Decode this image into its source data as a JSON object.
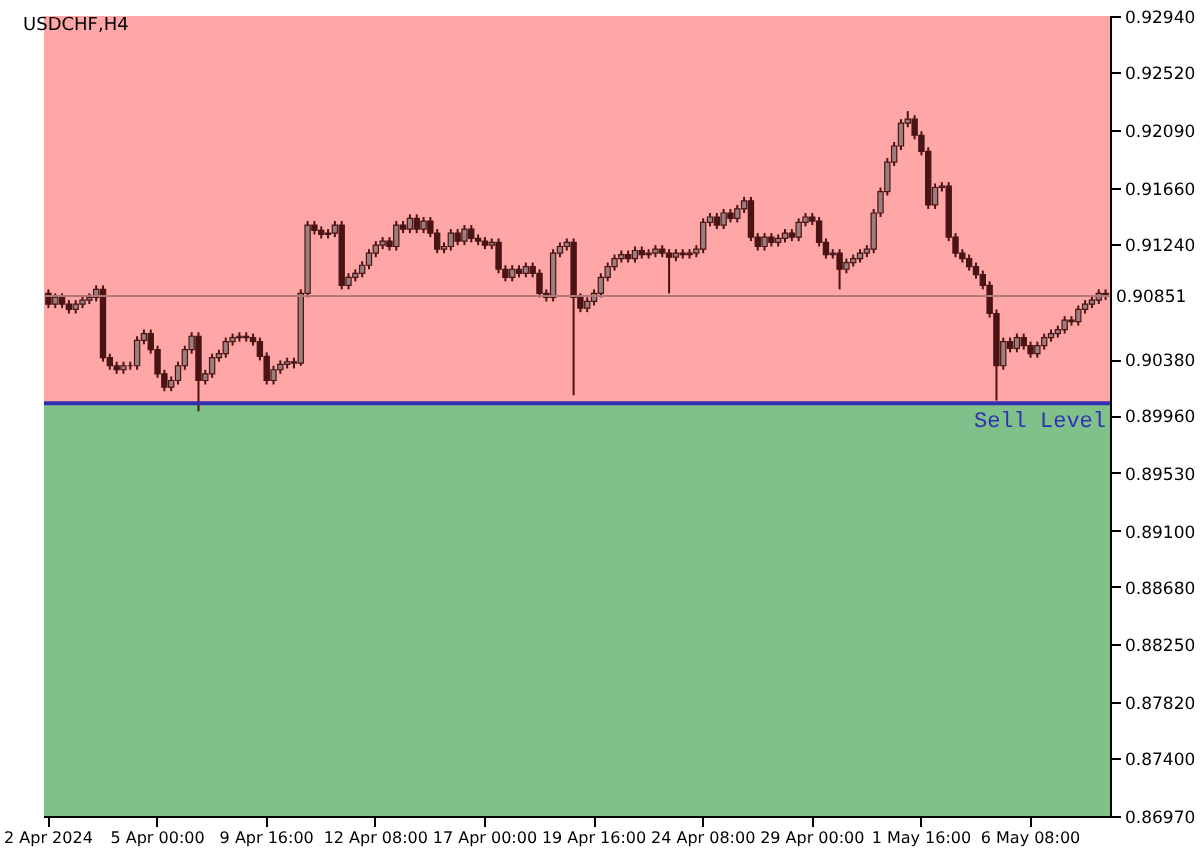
{
  "chart_data": {
    "type": "candlestick",
    "title": "USDCHF,H4",
    "categories": [
      "2 Apr 2024",
      null,
      null,
      null,
      null,
      null,
      null,
      null,
      null,
      null,
      null,
      null,
      null,
      null,
      null,
      null,
      "5 Apr 00:00",
      null,
      null,
      null,
      null,
      null,
      null,
      null,
      null,
      null,
      null,
      null,
      null,
      null,
      null,
      null,
      "9 Apr 16:00",
      null,
      null,
      null,
      null,
      null,
      null,
      null,
      null,
      null,
      null,
      null,
      null,
      null,
      null,
      null,
      "12 Apr 08:00",
      null,
      null,
      null,
      null,
      null,
      null,
      null,
      null,
      null,
      null,
      null,
      null,
      null,
      null,
      null,
      "17 Apr 00:00",
      null,
      null,
      null,
      null,
      null,
      null,
      null,
      null,
      null,
      null,
      null,
      null,
      null,
      null,
      null,
      "19 Apr 16:00",
      null,
      null,
      null,
      null,
      null,
      null,
      null,
      null,
      null,
      null,
      null,
      null,
      null,
      null,
      null,
      "24 Apr 08:00",
      null,
      null,
      null,
      null,
      null,
      null,
      null,
      null,
      null,
      null,
      null,
      null,
      null,
      null,
      null,
      "29 Apr 00:00",
      null,
      null,
      null,
      null,
      null,
      null,
      null,
      null,
      null,
      null,
      null,
      null,
      null,
      null,
      null,
      "1 May 16:00",
      null,
      null,
      null,
      null,
      null,
      null,
      null,
      null,
      null,
      null,
      null,
      null,
      null,
      null,
      null,
      "6 May 08:00",
      null,
      null,
      null,
      null,
      null,
      null,
      null,
      null,
      null,
      null,
      null
    ],
    "color": "#4a1414",
    "ohlc": [
      [
        0.9087,
        0.909,
        0.9076,
        0.9079
      ],
      [
        0.9079,
        0.9087,
        0.9076,
        0.9084
      ],
      [
        0.9084,
        0.9087,
        0.9076,
        0.9079
      ],
      [
        0.9079,
        0.9082,
        0.9072,
        0.9075
      ],
      [
        0.9075,
        0.9082,
        0.9072,
        0.9079
      ],
      [
        0.9079,
        0.9085,
        0.9076,
        0.9082
      ],
      [
        0.9082,
        0.9087,
        0.9079,
        0.9084
      ],
      [
        0.9084,
        0.9093,
        0.9081,
        0.909
      ],
      [
        0.909,
        0.9093,
        0.9036,
        0.9039
      ],
      [
        0.9039,
        0.9042,
        0.903,
        0.9033
      ],
      [
        0.9033,
        0.9036,
        0.9027,
        0.903
      ],
      [
        0.903,
        0.9036,
        0.9027,
        0.9033
      ],
      [
        0.9033,
        0.9036,
        0.903,
        0.9033
      ],
      [
        0.9033,
        0.9055,
        0.903,
        0.9052
      ],
      [
        0.9052,
        0.906,
        0.9049,
        0.9057
      ],
      [
        0.9057,
        0.906,
        0.9042,
        0.9045
      ],
      [
        0.9045,
        0.9048,
        0.9024,
        0.9027
      ],
      [
        0.9027,
        0.903,
        0.9014,
        0.9017
      ],
      [
        0.9017,
        0.9025,
        0.9014,
        0.9022
      ],
      [
        0.9022,
        0.9036,
        0.9019,
        0.9033
      ],
      [
        0.9033,
        0.9048,
        0.903,
        0.9045
      ],
      [
        0.9045,
        0.9058,
        0.9042,
        0.9055
      ],
      [
        0.9055,
        0.9058,
        0.8999,
        0.9022
      ],
      [
        0.9022,
        0.903,
        0.9019,
        0.9027
      ],
      [
        0.9027,
        0.9042,
        0.9024,
        0.9039
      ],
      [
        0.9039,
        0.9045,
        0.9036,
        0.9042
      ],
      [
        0.9042,
        0.9054,
        0.9039,
        0.9051
      ],
      [
        0.9051,
        0.9057,
        0.9048,
        0.9054
      ],
      [
        0.9054,
        0.9058,
        0.9051,
        0.9055
      ],
      [
        0.9055,
        0.9058,
        0.9051,
        0.9054
      ],
      [
        0.9054,
        0.9057,
        0.9048,
        0.9051
      ],
      [
        0.9051,
        0.9054,
        0.9037,
        0.904
      ],
      [
        0.904,
        0.9043,
        0.9019,
        0.9022
      ],
      [
        0.9022,
        0.9033,
        0.9019,
        0.903
      ],
      [
        0.903,
        0.9037,
        0.9027,
        0.9034
      ],
      [
        0.9034,
        0.9039,
        0.9031,
        0.9036
      ],
      [
        0.9036,
        0.9039,
        0.9031,
        0.9035
      ],
      [
        0.9035,
        0.909,
        0.9033,
        0.9087
      ],
      [
        0.9087,
        0.9141,
        0.9084,
        0.9138
      ],
      [
        0.9138,
        0.9141,
        0.9131,
        0.9134
      ],
      [
        0.9134,
        0.9137,
        0.9128,
        0.9131
      ],
      [
        0.9131,
        0.9135,
        0.9128,
        0.9132
      ],
      [
        0.9132,
        0.9141,
        0.9129,
        0.9138
      ],
      [
        0.9138,
        0.9141,
        0.909,
        0.9093
      ],
      [
        0.9093,
        0.9102,
        0.909,
        0.9099
      ],
      [
        0.9099,
        0.9105,
        0.9096,
        0.9102
      ],
      [
        0.9102,
        0.9111,
        0.9099,
        0.9108
      ],
      [
        0.9108,
        0.912,
        0.9105,
        0.9117
      ],
      [
        0.9117,
        0.9126,
        0.9114,
        0.9123
      ],
      [
        0.9123,
        0.9129,
        0.912,
        0.9126
      ],
      [
        0.9126,
        0.9129,
        0.9119,
        0.9122
      ],
      [
        0.9122,
        0.9141,
        0.9119,
        0.9138
      ],
      [
        0.9138,
        0.9141,
        0.9132,
        0.9135
      ],
      [
        0.9135,
        0.9146,
        0.9132,
        0.9143
      ],
      [
        0.9143,
        0.9146,
        0.9132,
        0.9135
      ],
      [
        0.9135,
        0.9144,
        0.9132,
        0.9141
      ],
      [
        0.9141,
        0.9144,
        0.9129,
        0.9132
      ],
      [
        0.9132,
        0.9135,
        0.9117,
        0.912
      ],
      [
        0.912,
        0.9125,
        0.9117,
        0.9122
      ],
      [
        0.9122,
        0.9135,
        0.9119,
        0.9132
      ],
      [
        0.9132,
        0.9135,
        0.9123,
        0.9126
      ],
      [
        0.9126,
        0.9138,
        0.9123,
        0.9135
      ],
      [
        0.9135,
        0.9138,
        0.9125,
        0.9128
      ],
      [
        0.9128,
        0.9131,
        0.9123,
        0.9126
      ],
      [
        0.9126,
        0.9129,
        0.912,
        0.9123
      ],
      [
        0.9123,
        0.9128,
        0.912,
        0.9125
      ],
      [
        0.9125,
        0.9128,
        0.9102,
        0.9105
      ],
      [
        0.9105,
        0.9108,
        0.9096,
        0.9099
      ],
      [
        0.9099,
        0.9108,
        0.9096,
        0.9105
      ],
      [
        0.9105,
        0.9108,
        0.9099,
        0.9102
      ],
      [
        0.9102,
        0.911,
        0.9099,
        0.9107
      ],
      [
        0.9107,
        0.911,
        0.9099,
        0.9102
      ],
      [
        0.9102,
        0.9105,
        0.9084,
        0.9087
      ],
      [
        0.9087,
        0.909,
        0.9081,
        0.9084
      ],
      [
        0.9084,
        0.912,
        0.9081,
        0.9117
      ],
      [
        0.9117,
        0.9125,
        0.9114,
        0.9122
      ],
      [
        0.9122,
        0.9128,
        0.9119,
        0.9125
      ],
      [
        0.9125,
        0.9128,
        0.9011,
        0.9084
      ],
      [
        0.9084,
        0.9087,
        0.9073,
        0.9076
      ],
      [
        0.9076,
        0.9084,
        0.9073,
        0.9081
      ],
      [
        0.9081,
        0.909,
        0.9078,
        0.9087
      ],
      [
        0.9087,
        0.9102,
        0.9084,
        0.9099
      ],
      [
        0.9099,
        0.911,
        0.9096,
        0.9107
      ],
      [
        0.9107,
        0.9116,
        0.9104,
        0.9113
      ],
      [
        0.9113,
        0.9119,
        0.911,
        0.9116
      ],
      [
        0.9116,
        0.9119,
        0.911,
        0.9113
      ],
      [
        0.9113,
        0.9122,
        0.911,
        0.9119
      ],
      [
        0.9119,
        0.9122,
        0.9113,
        0.9116
      ],
      [
        0.9116,
        0.912,
        0.9113,
        0.9117
      ],
      [
        0.9117,
        0.9123,
        0.9114,
        0.912
      ],
      [
        0.912,
        0.9123,
        0.9114,
        0.9117
      ],
      [
        0.9117,
        0.912,
        0.9087,
        0.9114
      ],
      [
        0.9114,
        0.912,
        0.9111,
        0.9117
      ],
      [
        0.9117,
        0.912,
        0.9113,
        0.9116
      ],
      [
        0.9116,
        0.912,
        0.9113,
        0.9117
      ],
      [
        0.9117,
        0.9123,
        0.9114,
        0.912
      ],
      [
        0.912,
        0.9143,
        0.9117,
        0.914
      ],
      [
        0.914,
        0.9147,
        0.9137,
        0.9144
      ],
      [
        0.9144,
        0.9147,
        0.9135,
        0.9138
      ],
      [
        0.9138,
        0.915,
        0.9135,
        0.9147
      ],
      [
        0.9147,
        0.915,
        0.914,
        0.9143
      ],
      [
        0.9143,
        0.9153,
        0.914,
        0.915
      ],
      [
        0.915,
        0.9159,
        0.9147,
        0.9156
      ],
      [
        0.9156,
        0.9159,
        0.9126,
        0.9129
      ],
      [
        0.9129,
        0.9132,
        0.9119,
        0.9122
      ],
      [
        0.9122,
        0.9132,
        0.9119,
        0.9129
      ],
      [
        0.9129,
        0.9132,
        0.9122,
        0.9125
      ],
      [
        0.9125,
        0.9131,
        0.9122,
        0.9128
      ],
      [
        0.9128,
        0.9135,
        0.9125,
        0.9132
      ],
      [
        0.9132,
        0.9135,
        0.9126,
        0.9129
      ],
      [
        0.9129,
        0.9143,
        0.9126,
        0.914
      ],
      [
        0.914,
        0.9147,
        0.9137,
        0.9144
      ],
      [
        0.9144,
        0.9147,
        0.9138,
        0.9141
      ],
      [
        0.9141,
        0.9144,
        0.9122,
        0.9125
      ],
      [
        0.9125,
        0.9128,
        0.9113,
        0.9116
      ],
      [
        0.9116,
        0.912,
        0.9113,
        0.9117
      ],
      [
        0.9117,
        0.912,
        0.909,
        0.9105
      ],
      [
        0.9105,
        0.9113,
        0.9102,
        0.911
      ],
      [
        0.911,
        0.9116,
        0.9107,
        0.9113
      ],
      [
        0.9113,
        0.912,
        0.911,
        0.9117
      ],
      [
        0.9117,
        0.9123,
        0.9114,
        0.912
      ],
      [
        0.912,
        0.915,
        0.9117,
        0.9147
      ],
      [
        0.9147,
        0.9166,
        0.9144,
        0.9163
      ],
      [
        0.9163,
        0.9188,
        0.916,
        0.9185
      ],
      [
        0.9185,
        0.92,
        0.9182,
        0.9197
      ],
      [
        0.9197,
        0.9217,
        0.9194,
        0.9214
      ],
      [
        0.9214,
        0.9223,
        0.9211,
        0.9217
      ],
      [
        0.9217,
        0.922,
        0.9202,
        0.9205
      ],
      [
        0.9205,
        0.9208,
        0.919,
        0.9193
      ],
      [
        0.9193,
        0.9196,
        0.915,
        0.9153
      ],
      [
        0.9153,
        0.9169,
        0.915,
        0.9166
      ],
      [
        0.9166,
        0.917,
        0.9163,
        0.9167
      ],
      [
        0.9167,
        0.917,
        0.9126,
        0.9129
      ],
      [
        0.9129,
        0.9132,
        0.9114,
        0.9117
      ],
      [
        0.9117,
        0.912,
        0.911,
        0.9113
      ],
      [
        0.9113,
        0.9116,
        0.9104,
        0.9107
      ],
      [
        0.9107,
        0.911,
        0.9098,
        0.9101
      ],
      [
        0.9101,
        0.9104,
        0.909,
        0.9093
      ],
      [
        0.9093,
        0.9096,
        0.9069,
        0.9072
      ],
      [
        0.9072,
        0.9075,
        0.9007,
        0.9033
      ],
      [
        0.9033,
        0.9054,
        0.903,
        0.9051
      ],
      [
        0.9051,
        0.9054,
        0.9043,
        0.9046
      ],
      [
        0.9046,
        0.9057,
        0.9043,
        0.9054
      ],
      [
        0.9054,
        0.9057,
        0.9045,
        0.9048
      ],
      [
        0.9048,
        0.9051,
        0.9039,
        0.9042
      ],
      [
        0.9042,
        0.9051,
        0.9039,
        0.9048
      ],
      [
        0.9048,
        0.9057,
        0.9045,
        0.9054
      ],
      [
        0.9054,
        0.906,
        0.9051,
        0.9057
      ],
      [
        0.9057,
        0.9063,
        0.9054,
        0.906
      ],
      [
        0.906,
        0.907,
        0.9057,
        0.9067
      ],
      [
        0.9067,
        0.907,
        0.9063,
        0.9066
      ],
      [
        0.9066,
        0.9078,
        0.9063,
        0.9075
      ],
      [
        0.9075,
        0.9082,
        0.9072,
        0.9079
      ],
      [
        0.9079,
        0.9085,
        0.9076,
        0.9082
      ],
      [
        0.9082,
        0.909,
        0.9079,
        0.9087
      ],
      [
        0.9087,
        0.909,
        0.90821,
        0.90851
      ]
    ],
    "ylim": [
      0.8697,
      0.9294
    ],
    "yticks": [
      {
        "value": 0.9294,
        "label": "0.92940"
      },
      {
        "value": 0.9252,
        "label": "0.92520"
      },
      {
        "value": 0.9209,
        "label": "0.92090"
      },
      {
        "value": 0.9166,
        "label": "0.91660"
      },
      {
        "value": 0.9124,
        "label": "0.91240"
      },
      {
        "value": 0.9038,
        "label": "0.90380"
      },
      {
        "value": 0.8996,
        "label": "0.89960"
      },
      {
        "value": 0.8953,
        "label": "0.89530"
      },
      {
        "value": 0.891,
        "label": "0.89100"
      },
      {
        "value": 0.8868,
        "label": "0.88680"
      },
      {
        "value": 0.8825,
        "label": "0.88250"
      },
      {
        "value": 0.8782,
        "label": "0.87820"
      },
      {
        "value": 0.874,
        "label": "0.87400"
      },
      {
        "value": 0.8697,
        "label": "0.86970"
      }
    ],
    "bands": [
      {
        "axis": "y",
        "from": 0.9005,
        "to": 0.9294,
        "color": "#ffa6a6"
      },
      {
        "axis": "y",
        "from": 0.8697,
        "to": 0.9005,
        "color": "#80c08a"
      }
    ],
    "ref_lines": [
      {
        "axis": "y",
        "value": 0.9005,
        "label": "Sell Level",
        "color": "#3030b0"
      },
      {
        "axis": "y",
        "value": 0.90851,
        "label": "0.90851",
        "color": "#b07878"
      }
    ]
  }
}
